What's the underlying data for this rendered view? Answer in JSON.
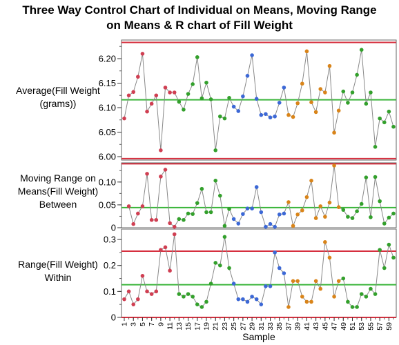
{
  "chart_data": {
    "type": "line",
    "title_lines": [
      "Three Way Control Chart of Individual on Means, Moving Range",
      "on Means & R chart of Fill Weight"
    ],
    "xlabel": "Sample",
    "x_ticks": [
      "1",
      "3",
      "5",
      "7",
      "9",
      "11",
      "13",
      "15",
      "17",
      "19",
      "21",
      "23",
      "25",
      "27",
      "29",
      "31",
      "33",
      "35",
      "37",
      "39",
      "41",
      "43",
      "45",
      "47",
      "49",
      "51",
      "53",
      "55",
      "57",
      "59"
    ],
    "colors": {
      "red": "#d03f52",
      "green": "#33a02c",
      "blue": "#3c68d6",
      "orange": "#d98419",
      "line": "#888888",
      "ucl": "#d6303f",
      "center": "#3ab53a"
    },
    "point_color_groups": [
      {
        "from": 1,
        "to": 12,
        "color": "red"
      },
      {
        "from": 13,
        "to": 24,
        "color": "green"
      },
      {
        "from": 25,
        "to": 36,
        "color": "blue"
      },
      {
        "from": 37,
        "to": 48,
        "color": "orange"
      },
      {
        "from": 49,
        "to": 60,
        "color": "green"
      }
    ],
    "panels": [
      {
        "ylabel_lines": [
          "Average(Fill Weight",
          "(grams))"
        ],
        "ylim": [
          5.993,
          6.238
        ],
        "yticks": [
          "6.00",
          "6.05",
          "6.10",
          "6.15",
          "6.20"
        ],
        "minor_step": 0.025,
        "ucl": 6.233,
        "cl": 6.116,
        "lcl": 5.996,
        "values": [
          6.078,
          6.125,
          6.132,
          6.163,
          6.21,
          6.092,
          6.108,
          6.125,
          6.013,
          6.141,
          6.131,
          6.131,
          6.112,
          6.096,
          6.128,
          6.148,
          6.203,
          6.119,
          6.151,
          6.117,
          6.013,
          6.082,
          6.078,
          6.12,
          6.102,
          6.093,
          6.123,
          6.165,
          6.207,
          6.118,
          6.085,
          6.087,
          6.08,
          6.082,
          6.11,
          6.141,
          6.085,
          6.081,
          6.109,
          6.149,
          6.215,
          6.111,
          6.091,
          6.138,
          6.131,
          6.185,
          6.049,
          6.094,
          6.133,
          6.11,
          6.131,
          6.167,
          6.218,
          6.108,
          6.131,
          6.02,
          6.078,
          6.07,
          6.092,
          6.061
        ]
      },
      {
        "ylabel_lines": [
          "Moving Range on",
          "Means(Fill Weight)",
          "Between"
        ],
        "ylim": [
          0,
          0.142
        ],
        "yticks": [
          "0",
          "0.05",
          "0.10"
        ],
        "minor_step": 0.025,
        "ucl": 0.14,
        "cl": 0.044,
        "lcl": null,
        "start_index": 2,
        "values": [
          0.047,
          0.008,
          0.031,
          0.047,
          0.118,
          0.017,
          0.017,
          0.112,
          0.127,
          0.01,
          0.002,
          0.019,
          0.017,
          0.031,
          0.03,
          0.054,
          0.085,
          0.034,
          0.034,
          0.103,
          0.07,
          0.004,
          0.041,
          0.019,
          0.009,
          0.03,
          0.042,
          0.042,
          0.089,
          0.034,
          0.002,
          0.008,
          0.002,
          0.029,
          0.031,
          0.056,
          0.004,
          0.029,
          0.038,
          0.067,
          0.103,
          0.021,
          0.047,
          0.024,
          0.055,
          0.136,
          0.045,
          0.039,
          0.024,
          0.021,
          0.036,
          0.052,
          0.11,
          0.023,
          0.111,
          0.058,
          0.009,
          0.022,
          0.031
        ]
      },
      {
        "ylabel_lines": [
          "Range(Fill Weight)",
          "Within"
        ],
        "ylim": [
          0,
          0.34
        ],
        "yticks": [
          "0",
          "0.1",
          "0.2",
          "0.3"
        ],
        "minor_step": 0.05,
        "ucl": 0.255,
        "cl": 0.126,
        "lcl": 0,
        "values": [
          0.07,
          0.1,
          0.05,
          0.07,
          0.16,
          0.1,
          0.09,
          0.1,
          0.26,
          0.27,
          0.18,
          0.32,
          0.09,
          0.08,
          0.09,
          0.08,
          0.05,
          0.04,
          0.06,
          0.13,
          0.21,
          0.2,
          0.31,
          0.19,
          0.13,
          0.07,
          0.07,
          0.06,
          0.08,
          0.07,
          0.05,
          0.12,
          0.12,
          0.25,
          0.19,
          0.17,
          0.04,
          0.14,
          0.14,
          0.08,
          0.06,
          0.06,
          0.14,
          0.11,
          0.29,
          0.23,
          0.08,
          0.14,
          0.15,
          0.06,
          0.04,
          0.04,
          0.09,
          0.08,
          0.11,
          0.09,
          0.26,
          0.19,
          0.28,
          0.23
        ]
      }
    ]
  }
}
